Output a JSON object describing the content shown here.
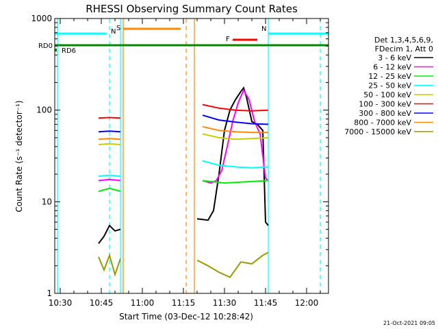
{
  "chart_data": {
    "type": "line",
    "title": "RHESSI Observing Summary Count Rates",
    "xlabel": "Start Time (03-Dec-12 10:28:42)",
    "ylabel": "Count Rate (s⁻¹ detector⁻¹)",
    "y_scale": "log",
    "ylim": [
      1,
      1000
    ],
    "xlim": [
      "10:28",
      "12:08"
    ],
    "x_ticks": [
      "10:30",
      "10:45",
      "11:00",
      "11:15",
      "11:30",
      "11:45",
      "12:00"
    ],
    "y_ticks": [
      "1",
      "10",
      "100",
      "1000"
    ],
    "legend_position": "right",
    "legend_header": [
      "Det 1,3,4,5,6,9,",
      "FDecim 1, Att 0"
    ],
    "footer_date": "21-Oct-2021 09:05",
    "series": [
      {
        "name": "3 - 6 keV",
        "color": "#000000",
        "segments": [
          {
            "x": [
              "10:44",
              "10:46",
              "10:48",
              "10:50",
              "10:52"
            ],
            "y": [
              3.5,
              4.2,
              5.5,
              4.8,
              5.0
            ]
          },
          {
            "x": [
              "11:20",
              "11:24",
              "11:26",
              "11:28",
              "11:30",
              "11:32",
              "11:34",
              "11:36",
              "11:37",
              "11:38",
              "11:40",
              "11:42",
              "11:44",
              "11:45",
              "11:46"
            ],
            "y": [
              6.5,
              6.3,
              8,
              20,
              60,
              100,
              130,
              160,
              175,
              140,
              75,
              70,
              60,
              6,
              5.5
            ]
          }
        ]
      },
      {
        "name": "6 - 12 keV",
        "color": "#ff00ff",
        "segments": [
          {
            "x": [
              "10:44",
              "10:48",
              "10:52"
            ],
            "y": [
              17,
              17.5,
              17
            ]
          },
          {
            "x": [
              "11:22",
              "11:25",
              "11:27",
              "11:29",
              "11:31",
              "11:33",
              "11:35",
              "11:37",
              "11:39",
              "11:41",
              "11:43",
              "11:45",
              "11:46"
            ],
            "y": [
              17,
              16,
              17,
              22,
              40,
              75,
              120,
              165,
              130,
              75,
              55,
              18,
              17
            ]
          }
        ]
      },
      {
        "name": "12 - 25 keV",
        "color": "#00ee00",
        "segments": [
          {
            "x": [
              "10:44",
              "10:48",
              "10:52"
            ],
            "y": [
              13,
              14,
              13
            ]
          },
          {
            "x": [
              "11:22",
              "11:30",
              "11:38",
              "11:46"
            ],
            "y": [
              17,
              16,
              16.5,
              17
            ]
          }
        ]
      },
      {
        "name": "25 - 50 keV",
        "color": "#00ffff",
        "segments": [
          {
            "x": [
              "10:44",
              "10:48",
              "10:52"
            ],
            "y": [
              19,
              19.5,
              19
            ]
          },
          {
            "x": [
              "11:22",
              "11:28",
              "11:34",
              "11:40",
              "11:46"
            ],
            "y": [
              28,
              25,
              24,
              23.5,
              24
            ]
          }
        ]
      },
      {
        "name": "50 - 100 keV",
        "color": "#cccc00",
        "segments": [
          {
            "x": [
              "10:44",
              "10:48",
              "10:52"
            ],
            "y": [
              42,
              43,
              42
            ]
          },
          {
            "x": [
              "11:22",
              "11:28",
              "11:34",
              "11:40",
              "11:46"
            ],
            "y": [
              55,
              50,
              48,
              49,
              50
            ]
          }
        ]
      },
      {
        "name": "100 - 300 keV",
        "color": "#ff0000",
        "segments": [
          {
            "x": [
              "10:44",
              "10:48",
              "10:52"
            ],
            "y": [
              82,
              83,
              82
            ]
          },
          {
            "x": [
              "11:22",
              "11:28",
              "11:34",
              "11:40",
              "11:46"
            ],
            "y": [
              115,
              105,
              100,
              98,
              100
            ]
          }
        ]
      },
      {
        "name": "300 - 800 keV",
        "color": "#0000ff",
        "segments": [
          {
            "x": [
              "10:44",
              "10:48",
              "10:52"
            ],
            "y": [
              58,
              59,
              58
            ]
          },
          {
            "x": [
              "11:22",
              "11:28",
              "11:34",
              "11:40",
              "11:46"
            ],
            "y": [
              88,
              78,
              74,
              71,
              70
            ]
          }
        ]
      },
      {
        "name": "800 - 7000 keV",
        "color": "#ff8800",
        "segments": [
          {
            "x": [
              "10:44",
              "10:48",
              "10:52"
            ],
            "y": [
              48,
              49,
              48
            ]
          },
          {
            "x": [
              "11:22",
              "11:28",
              "11:34",
              "11:40",
              "11:46"
            ],
            "y": [
              66,
              60,
              58,
              57,
              57
            ]
          }
        ]
      },
      {
        "name": "7000 - 15000 keV",
        "color": "#999900",
        "segments": [
          {
            "x": [
              "10:44",
              "10:46",
              "10:48",
              "10:50",
              "10:52"
            ],
            "y": [
              2.5,
              1.8,
              2.6,
              1.6,
              2.4
            ]
          },
          {
            "x": [
              "11:20",
              "11:24",
              "11:28",
              "11:32",
              "11:36",
              "11:40",
              "11:44",
              "11:46"
            ],
            "y": [
              2.3,
              2.0,
              1.7,
              1.5,
              2.2,
              2.1,
              2.6,
              2.8
            ]
          }
        ]
      }
    ],
    "flags": [
      {
        "label": "N",
        "color": "#00ffff",
        "x1": "10:28",
        "x2": "10:47"
      },
      {
        "label": "N",
        "color": "#00ffff",
        "x1": "11:46",
        "x2": "12:08"
      },
      {
        "label": "S",
        "color": "#ff8800",
        "x1": "10:53",
        "x2": "11:14"
      },
      {
        "label": "F",
        "color": "#ff0000",
        "x1": "11:33",
        "x2": "11:42"
      },
      {
        "label": "RD0",
        "color": "#008800",
        "x1": "10:28",
        "x2": "12:08"
      },
      {
        "label": "RD6",
        "color": "#008800",
        "x1": "10:28",
        "x2": "10:28"
      }
    ],
    "vertical_markers": [
      {
        "x": "10:29",
        "color": "#00ffff",
        "style": "solid"
      },
      {
        "x": "10:48",
        "color": "#00ffff",
        "style": "dashed"
      },
      {
        "x": "10:52",
        "color": "#00ffff",
        "style": "solid"
      },
      {
        "x": "10:53",
        "color": "#ff8800",
        "style": "solid"
      },
      {
        "x": "11:16",
        "color": "#ff8800",
        "style": "dashed"
      },
      {
        "x": "11:19",
        "color": "#ff8800",
        "style": "solid"
      },
      {
        "x": "11:46",
        "color": "#00ffff",
        "style": "solid"
      },
      {
        "x": "12:05",
        "color": "#00ffff",
        "style": "dashed"
      }
    ]
  }
}
